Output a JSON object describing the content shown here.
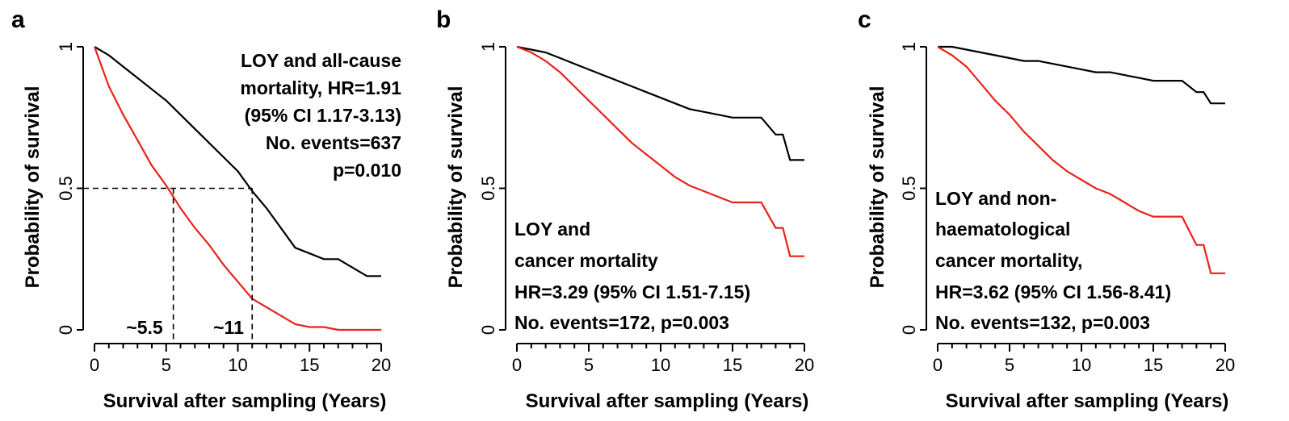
{
  "colors": {
    "loy": "#e8221a",
    "no_loy": "#000000"
  },
  "chart_data": [
    {
      "type": "line",
      "panel": "a",
      "xlabel": "Survival after sampling (Years)",
      "ylabel": "Probability of survival",
      "xlim": [
        0,
        20
      ],
      "ylim": [
        0,
        1
      ],
      "xticks": [
        "0",
        "5",
        "10",
        "15",
        "20"
      ],
      "yticks": [
        "0",
        "0.5",
        "1"
      ],
      "series": [
        {
          "color": "#000000",
          "x": [
            0,
            1,
            2,
            3,
            4,
            5,
            6,
            7,
            8,
            9,
            10,
            11,
            12,
            13,
            14,
            15,
            16,
            17,
            18,
            19,
            20
          ],
          "y": [
            1.0,
            0.97,
            0.93,
            0.89,
            0.85,
            0.81,
            0.76,
            0.71,
            0.66,
            0.61,
            0.56,
            0.49,
            0.43,
            0.36,
            0.29,
            0.27,
            0.25,
            0.25,
            0.22,
            0.19,
            0.19
          ]
        },
        {
          "color": "#e8221a",
          "x": [
            0,
            1,
            2,
            3,
            4,
            5,
            6,
            7,
            8,
            9,
            10,
            11,
            12,
            13,
            14,
            15,
            16,
            17,
            18,
            19,
            20
          ],
          "y": [
            1.0,
            0.86,
            0.76,
            0.67,
            0.58,
            0.51,
            0.43,
            0.36,
            0.3,
            0.23,
            0.17,
            0.11,
            0.08,
            0.05,
            0.02,
            0.01,
            0.01,
            0.0,
            0.0,
            0.0,
            0.0
          ]
        }
      ],
      "guides": {
        "y": 0.5,
        "x": [
          5.5,
          11
        ]
      },
      "annotations": {
        "lines": [
          "LOY and all-cause",
          "mortality, HR=1.91",
          "(95% CI 1.17-3.13)",
          "No. events=637",
          "p=0.010"
        ],
        "x_markers": [
          "~5.5",
          "~11"
        ]
      }
    },
    {
      "type": "line",
      "panel": "b",
      "xlabel": "Survival after sampling (Years)",
      "ylabel": "Probability of survival",
      "xlim": [
        0,
        20
      ],
      "ylim": [
        0,
        1
      ],
      "xticks": [
        "0",
        "5",
        "10",
        "15",
        "20"
      ],
      "yticks": [
        "0",
        "0.5",
        "1"
      ],
      "series": [
        {
          "color": "#000000",
          "x": [
            0,
            1,
            2,
            3,
            4,
            5,
            6,
            7,
            8,
            9,
            10,
            11,
            12,
            13,
            14,
            15,
            16,
            17,
            18,
            18.5,
            19,
            19.5,
            20
          ],
          "y": [
            1.0,
            0.99,
            0.98,
            0.96,
            0.94,
            0.92,
            0.9,
            0.88,
            0.86,
            0.84,
            0.82,
            0.8,
            0.78,
            0.77,
            0.76,
            0.75,
            0.75,
            0.75,
            0.69,
            0.69,
            0.6,
            0.6,
            0.6
          ]
        },
        {
          "color": "#e8221a",
          "x": [
            0,
            1,
            2,
            3,
            4,
            5,
            6,
            7,
            8,
            9,
            10,
            11,
            12,
            13,
            14,
            15,
            16,
            17,
            18,
            18.5,
            19,
            19.5,
            20
          ],
          "y": [
            1.0,
            0.98,
            0.95,
            0.91,
            0.86,
            0.81,
            0.76,
            0.71,
            0.66,
            0.62,
            0.58,
            0.54,
            0.51,
            0.49,
            0.47,
            0.45,
            0.45,
            0.45,
            0.36,
            0.36,
            0.26,
            0.26,
            0.26
          ]
        }
      ],
      "annotations": {
        "lines": [
          "LOY and",
          "cancer mortality",
          "HR=3.29 (95% CI 1.51-7.15)",
          "No. events=172, p=0.003"
        ]
      }
    },
    {
      "type": "line",
      "panel": "c",
      "xlabel": "Survival after sampling (Years)",
      "ylabel": "Probability of survival",
      "xlim": [
        0,
        20
      ],
      "ylim": [
        0,
        1
      ],
      "xticks": [
        "0",
        "5",
        "10",
        "15",
        "20"
      ],
      "yticks": [
        "0",
        "0.5",
        "1"
      ],
      "series": [
        {
          "color": "#000000",
          "x": [
            0,
            1,
            2,
            3,
            4,
            5,
            6,
            7,
            8,
            9,
            10,
            11,
            12,
            13,
            14,
            15,
            16,
            17,
            18,
            18.5,
            19,
            19.5,
            20
          ],
          "y": [
            1.0,
            1.0,
            0.99,
            0.98,
            0.97,
            0.96,
            0.95,
            0.95,
            0.94,
            0.93,
            0.92,
            0.91,
            0.91,
            0.9,
            0.89,
            0.88,
            0.88,
            0.88,
            0.84,
            0.84,
            0.8,
            0.8,
            0.8
          ]
        },
        {
          "color": "#e8221a",
          "x": [
            0,
            1,
            2,
            3,
            4,
            5,
            6,
            7,
            8,
            9,
            10,
            11,
            12,
            13,
            14,
            15,
            16,
            17,
            18,
            18.5,
            19,
            19.5,
            20
          ],
          "y": [
            1.0,
            0.97,
            0.93,
            0.87,
            0.81,
            0.76,
            0.7,
            0.65,
            0.6,
            0.56,
            0.53,
            0.5,
            0.48,
            0.45,
            0.42,
            0.4,
            0.4,
            0.4,
            0.3,
            0.3,
            0.2,
            0.2,
            0.2
          ]
        }
      ],
      "annotations": {
        "lines": [
          "LOY and non-",
          "haematological",
          "cancer mortality,",
          "HR=3.62 (95% CI 1.56-8.41)",
          "No. events=132, p=0.003"
        ]
      }
    }
  ]
}
